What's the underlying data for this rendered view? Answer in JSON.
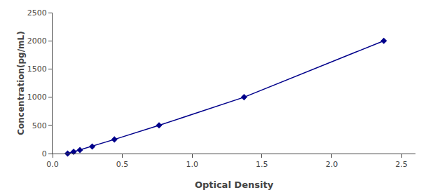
{
  "chart_data": {
    "type": "line",
    "xlabel": "Optical Density",
    "ylabel": "Concentration(pg/mL)",
    "x": [
      0.108,
      0.151,
      0.196,
      0.284,
      0.443,
      0.763,
      1.372,
      2.373
    ],
    "values": [
      0,
      31.25,
      62.5,
      125,
      250,
      500,
      1000,
      2000
    ],
    "color": "#00008B",
    "marker": "diamond",
    "xlim": [
      0,
      2.6
    ],
    "ylim": [
      0,
      2500
    ],
    "xticks": [
      {
        "value": 0,
        "label": "0.0"
      },
      0.5,
      {
        "value": 1,
        "label": "1.0"
      },
      1.5,
      {
        "value": 2,
        "label": "2.0"
      },
      2.5
    ],
    "yticks": [
      0,
      500,
      1000,
      1500,
      2000,
      2500
    ],
    "grid": false
  }
}
